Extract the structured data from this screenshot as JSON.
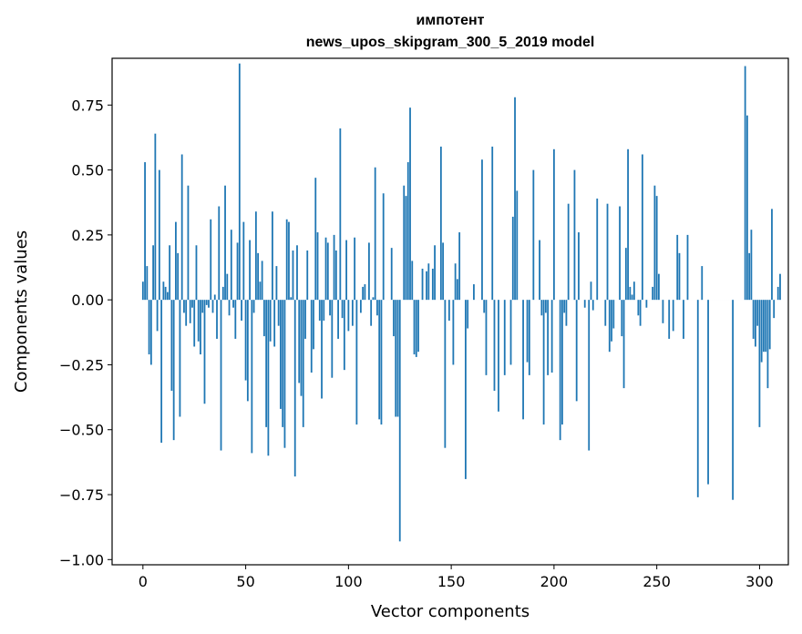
{
  "chart_data": {
    "type": "bar",
    "title": "импотент",
    "subtitle": "news_upos_skipgram_300_5_2019 model",
    "xlabel": "Vector components",
    "ylabel": "Components values",
    "xlim": [
      -15,
      314
    ],
    "ylim": [
      -1.02,
      0.93
    ],
    "xticks": [
      0,
      50,
      100,
      150,
      200,
      250,
      300
    ],
    "yticks": [
      -1.0,
      -0.75,
      -0.5,
      -0.25,
      0.0,
      0.25,
      0.5,
      0.75
    ],
    "ytick_labels": [
      "−1.00",
      "−0.75",
      "−0.50",
      "−0.25",
      "0.00",
      "0.25",
      "0.50",
      "0.75"
    ],
    "bar_color": "#1f77b4",
    "series": [
      {
        "name": "импотент",
        "values": [
          0.07,
          0.53,
          0.13,
          -0.21,
          -0.25,
          0.21,
          0.64,
          -0.12,
          0.5,
          -0.55,
          0.07,
          0.05,
          0.03,
          0.21,
          -0.35,
          -0.54,
          0.3,
          0.18,
          -0.45,
          0.56,
          -0.05,
          -0.1,
          0.44,
          -0.09,
          -0.03,
          -0.18,
          0.21,
          -0.16,
          -0.21,
          -0.05,
          -0.4,
          -0.02,
          -0.03,
          0.31,
          -0.05,
          0.02,
          -0.15,
          0.36,
          -0.58,
          0.05,
          0.44,
          0.1,
          -0.06,
          0.27,
          -0.03,
          -0.15,
          0.22,
          0.91,
          -0.08,
          0.3,
          -0.31,
          -0.39,
          0.23,
          -0.59,
          -0.05,
          0.34,
          0.18,
          0.07,
          0.15,
          -0.14,
          -0.49,
          -0.6,
          -0.16,
          0.34,
          -0.18,
          0.13,
          -0.1,
          -0.42,
          -0.49,
          -0.57,
          0.31,
          0.3,
          0.01,
          0.19,
          -0.68,
          0.21,
          -0.32,
          -0.37,
          -0.49,
          -0.15,
          0.19,
          0.0,
          -0.28,
          -0.19,
          0.47,
          0.26,
          -0.08,
          -0.38,
          -0.08,
          0.24,
          0.22,
          -0.06,
          -0.3,
          0.25,
          0.19,
          -0.15,
          0.66,
          -0.07,
          -0.27,
          0.23,
          -0.12,
          0.0,
          -0.1,
          0.24,
          -0.48,
          0.0,
          -0.05,
          0.05,
          0.06,
          0.0,
          0.22,
          -0.1,
          0.01,
          0.51,
          -0.06,
          -0.46,
          -0.48,
          0.41,
          0.0,
          0.0,
          0.0,
          0.2,
          -0.14,
          -0.45,
          -0.45,
          -0.93,
          0.0,
          0.44,
          0.4,
          0.53,
          0.74,
          0.15,
          -0.21,
          -0.22,
          -0.2,
          0.0,
          0.12,
          0.0,
          0.11,
          0.14,
          0.0,
          0.12,
          0.21,
          0.0,
          0.0,
          0.59,
          0.22,
          -0.57,
          0.0,
          -0.08,
          0.0,
          -0.25,
          0.14,
          0.08,
          0.26,
          0.0,
          0.0,
          -0.69,
          -0.11,
          0.0,
          0.0,
          0.06,
          0.0,
          0.0,
          0.0,
          0.54,
          -0.05,
          -0.29,
          0.0,
          0.0,
          0.59,
          -0.35,
          0.0,
          -0.43,
          0.0,
          0.0,
          -0.29,
          0.0,
          0.0,
          -0.25,
          0.32,
          0.78,
          0.42,
          0.0,
          0.0,
          -0.46,
          0.0,
          -0.24,
          -0.29,
          0.0,
          0.5,
          0.0,
          0.0,
          0.23,
          -0.06,
          -0.48,
          -0.05,
          -0.29,
          0.0,
          -0.28,
          0.58,
          0.0,
          0.0,
          -0.54,
          -0.48,
          -0.05,
          -0.1,
          0.37,
          0.0,
          0.0,
          0.5,
          -0.39,
          0.26,
          0.0,
          0.0,
          -0.03,
          0.0,
          -0.58,
          0.07,
          -0.04,
          0.0,
          0.39,
          0.0,
          0.0,
          0.0,
          -0.1,
          0.37,
          -0.2,
          -0.16,
          -0.11,
          0.0,
          0.0,
          0.36,
          -0.14,
          -0.34,
          0.2,
          0.58,
          0.05,
          0.02,
          0.07,
          0.0,
          -0.06,
          -0.1,
          0.56,
          0.0,
          -0.03,
          0.0,
          0.0,
          0.05,
          0.44,
          0.4,
          0.1,
          0.0,
          -0.09,
          0.0,
          0.0,
          -0.15,
          0.0,
          -0.12,
          0.0,
          0.25,
          0.18,
          0.0,
          -0.15,
          0.0,
          0.25,
          0.0,
          0.0,
          0.0,
          0.0,
          -0.76,
          0.0,
          0.13,
          0.0,
          0.0,
          -0.71,
          0.0,
          0.0,
          0.0,
          0.0,
          0.0,
          0.0,
          0.0,
          0.0,
          0.0,
          0.0,
          0.0,
          -0.77,
          0.0,
          0.0,
          0.0,
          0.0,
          0.0,
          0.9,
          0.71,
          0.18,
          0.27,
          -0.15,
          -0.18,
          -0.1,
          -0.49,
          -0.24,
          -0.2,
          -0.2,
          -0.34,
          -0.19,
          0.35,
          -0.07,
          0.0,
          0.05,
          0.1
        ]
      }
    ]
  }
}
